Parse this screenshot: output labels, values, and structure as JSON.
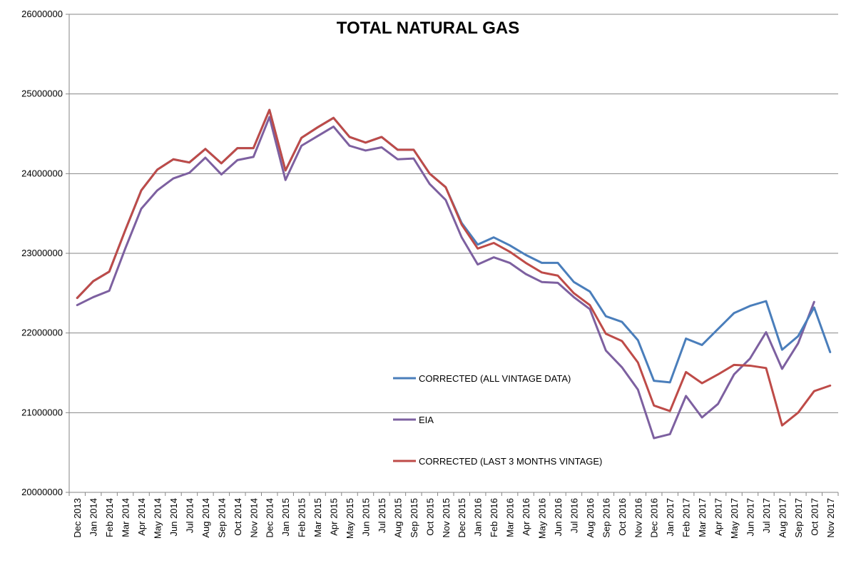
{
  "chart_data": {
    "type": "line",
    "title": "TOTAL NATURAL GAS",
    "xlabel": "",
    "ylabel": "",
    "ylim": [
      20000000,
      26000000
    ],
    "yticks": [
      20000000,
      21000000,
      22000000,
      23000000,
      24000000,
      25000000,
      26000000
    ],
    "ytick_labels": [
      "20000000",
      "21000000",
      "22000000",
      "23000000",
      "24000000",
      "25000000",
      "26000000"
    ],
    "grid": true,
    "legend_position": "lower-center",
    "categories": [
      "Dec 2013",
      "Jan 2014",
      "Feb 2014",
      "Mar 2014",
      "Apr 2014",
      "May 2014",
      "Jun 2014",
      "Jul 2014",
      "Aug 2014",
      "Sep 2014",
      "Oct 2014",
      "Nov 2014",
      "Dec 2014",
      "Jan 2015",
      "Feb 2015",
      "Mar 2015",
      "Apr 2015",
      "May 2015",
      "Jun 2015",
      "Jul 2015",
      "Aug 2015",
      "Sep 2015",
      "Oct 2015",
      "Nov 2015",
      "Dec 2015",
      "Jan 2016",
      "Feb 2016",
      "Mar 2016",
      "Apr 2016",
      "May 2016",
      "Jun 2016",
      "Jul 2016",
      "Aug 2016",
      "Sep 2016",
      "Oct 2016",
      "Nov 2016",
      "Dec 2016",
      "Jan 2017",
      "Feb 2017",
      "Mar 2017",
      "Apr 2017",
      "May 2017",
      "Jun 2017",
      "Jul 2017",
      "Aug 2017",
      "Sep 2017",
      "Oct 2017",
      "Nov 2017"
    ],
    "series": [
      {
        "name": "CORRECTED (ALL VINTAGE DATA)",
        "color": "#4a7ebb",
        "values": [
          22440000,
          22650000,
          22770000,
          23290000,
          23790000,
          24050000,
          24180000,
          24140000,
          24310000,
          24130000,
          24320000,
          24320000,
          24800000,
          24040000,
          24450000,
          24580000,
          24700000,
          24460000,
          24390000,
          24460000,
          24300000,
          24300000,
          24000000,
          23830000,
          23380000,
          23110000,
          23200000,
          23100000,
          22980000,
          22880000,
          22880000,
          22640000,
          22520000,
          22210000,
          22140000,
          21910000,
          21400000,
          21380000,
          21930000,
          21850000,
          22050000,
          22250000,
          22340000,
          22400000,
          21790000,
          21960000,
          22320000,
          21760000
        ]
      },
      {
        "name": "EIA",
        "color": "#7d60a0",
        "values": [
          22350000,
          22450000,
          22530000,
          23060000,
          23560000,
          23790000,
          23940000,
          24010000,
          24200000,
          23990000,
          24170000,
          24210000,
          24710000,
          23920000,
          24350000,
          24470000,
          24590000,
          24350000,
          24290000,
          24330000,
          24180000,
          24190000,
          23870000,
          23670000,
          23200000,
          22860000,
          22950000,
          22880000,
          22740000,
          22640000,
          22630000,
          22450000,
          22300000,
          21780000,
          21570000,
          21290000,
          20680000,
          20730000,
          21210000,
          20940000,
          21110000,
          21480000,
          21680000,
          22010000,
          21550000,
          21870000,
          22390000,
          null
        ]
      },
      {
        "name": "CORRECTED (LAST 3 MONTHS VINTAGE)",
        "color": "#be4b48",
        "values": [
          22440000,
          22650000,
          22770000,
          23290000,
          23790000,
          24050000,
          24180000,
          24140000,
          24310000,
          24130000,
          24320000,
          24320000,
          24800000,
          24040000,
          24450000,
          24580000,
          24700000,
          24460000,
          24390000,
          24460000,
          24300000,
          24300000,
          24000000,
          23830000,
          23360000,
          23060000,
          23130000,
          23020000,
          22880000,
          22760000,
          22720000,
          22500000,
          22350000,
          21990000,
          21900000,
          21630000,
          21090000,
          21020000,
          21510000,
          21370000,
          21480000,
          21600000,
          21590000,
          21560000,
          20840000,
          21000000,
          21270000,
          21340000
        ]
      }
    ]
  }
}
